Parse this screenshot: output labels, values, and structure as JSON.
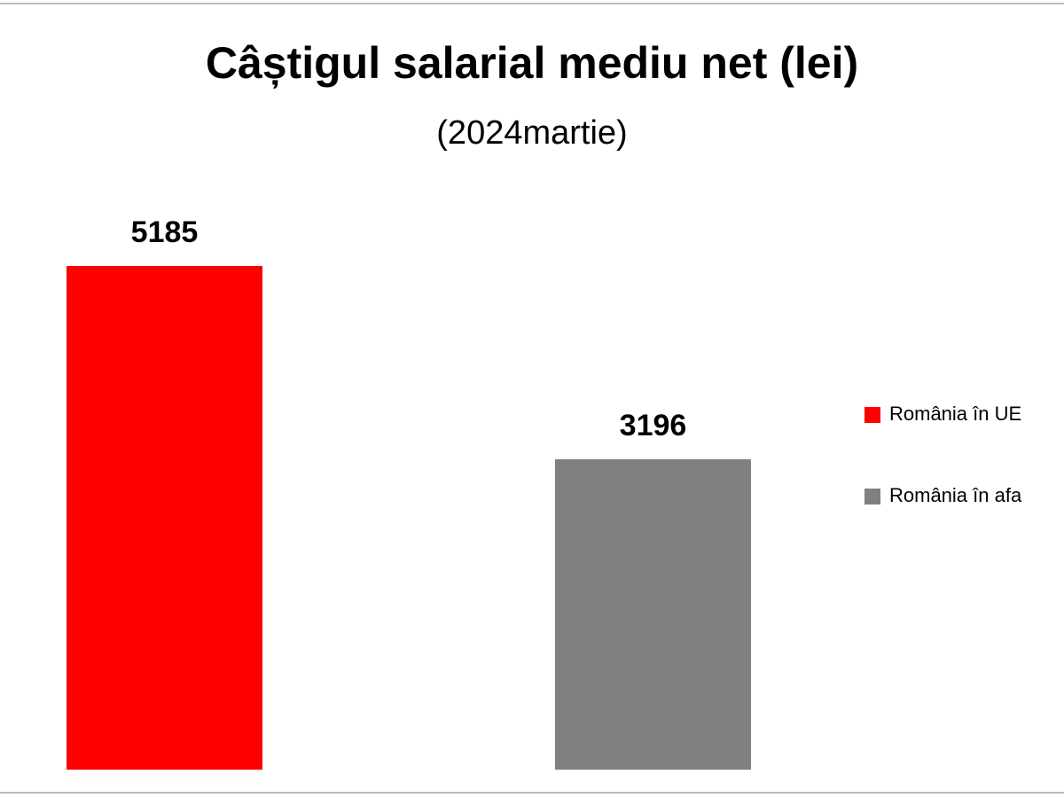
{
  "chart_data": {
    "type": "bar",
    "title": "Câștigul salarial mediu net (lei)",
    "subtitle": "(2024martie)",
    "series": [
      {
        "name": "România în UE",
        "color": "#ff0000",
        "values": [
          5185
        ]
      },
      {
        "name": "România în afa",
        "color": "#808080",
        "values": [
          3196
        ]
      }
    ]
  }
}
